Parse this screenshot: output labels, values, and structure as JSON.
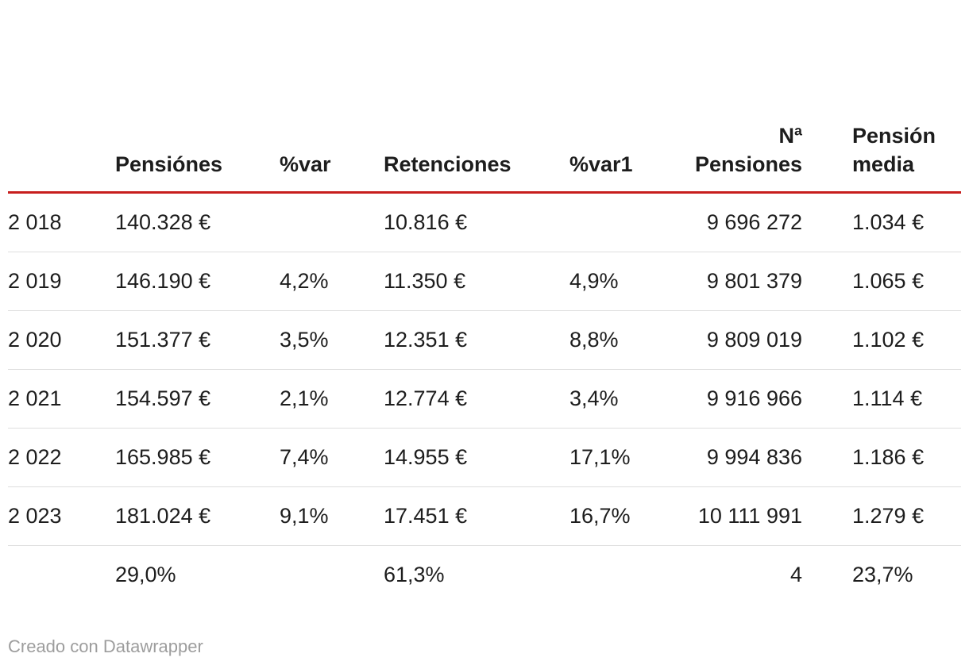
{
  "chart_data": {
    "type": "table",
    "title": "",
    "columns": [
      "",
      "Pensiónes",
      "%var",
      "Retenciones",
      "%var1",
      "Nª Pensiones",
      "Pensión media"
    ],
    "rows": [
      [
        "2 018",
        "140.328 €",
        "",
        "10.816 €",
        "",
        "9 696 272",
        "1.034 €"
      ],
      [
        "2 019",
        "146.190 €",
        "4,2%",
        "11.350 €",
        "4,9%",
        "9 801 379",
        "1.065 €"
      ],
      [
        "2 020",
        "151.377 €",
        "3,5%",
        "12.351 €",
        "8,8%",
        "9 809 019",
        "1.102 €"
      ],
      [
        "2 021",
        "154.597 €",
        "2,1%",
        "12.774 €",
        "3,4%",
        "9 916 966",
        "1.114 €"
      ],
      [
        "2 022",
        "165.985 €",
        "7,4%",
        "14.955 €",
        "17,1%",
        "9 994 836",
        "1.186 €"
      ],
      [
        "2 023",
        "181.024 €",
        "9,1%",
        "17.451 €",
        "16,7%",
        "10 111 991",
        "1.279 €"
      ],
      [
        "",
        "29,0%",
        "",
        "61,3%",
        "",
        "4",
        "23,7%"
      ]
    ],
    "layout_hints": {
      "column_alignments": [
        "left",
        "left",
        "left",
        "left",
        "left",
        "right",
        "left"
      ],
      "header_rule_color": "#c71e1d",
      "row_divider_color": "#dedede",
      "grid": "horizontal-dividers-only"
    }
  },
  "footer": {
    "credit": "Creado con Datawrapper"
  },
  "colors": {
    "accent_rule": "#c71e1d",
    "divider": "#dedede",
    "text": "#1d1d1d",
    "muted_text": "#9d9d9d",
    "background": "#ffffff"
  }
}
